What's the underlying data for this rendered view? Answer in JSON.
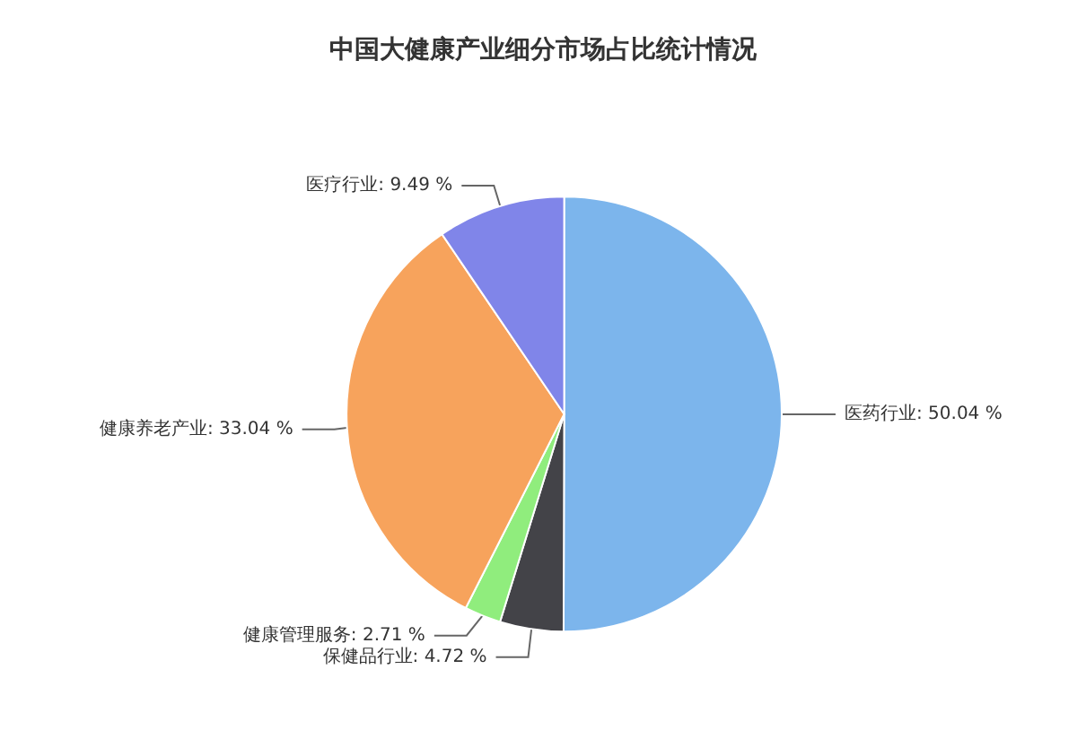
{
  "chart_data": {
    "type": "pie",
    "title": "中国大健康产业细分市场占比统计情况",
    "categories": [
      "医药行业",
      "保健品行业",
      "健康管理服务",
      "健康养老产业",
      "医疗行业"
    ],
    "values": [
      50.04,
      4.72,
      2.71,
      33.04,
      9.49
    ],
    "colors": [
      "#7cb5ec",
      "#434348",
      "#90ed7d",
      "#f7a35c",
      "#8085e9"
    ],
    "value_labels": [
      "50.04 %",
      "4.72 %",
      "2.71 %",
      "33.04 %",
      "9.49 %"
    ],
    "legend": false
  }
}
